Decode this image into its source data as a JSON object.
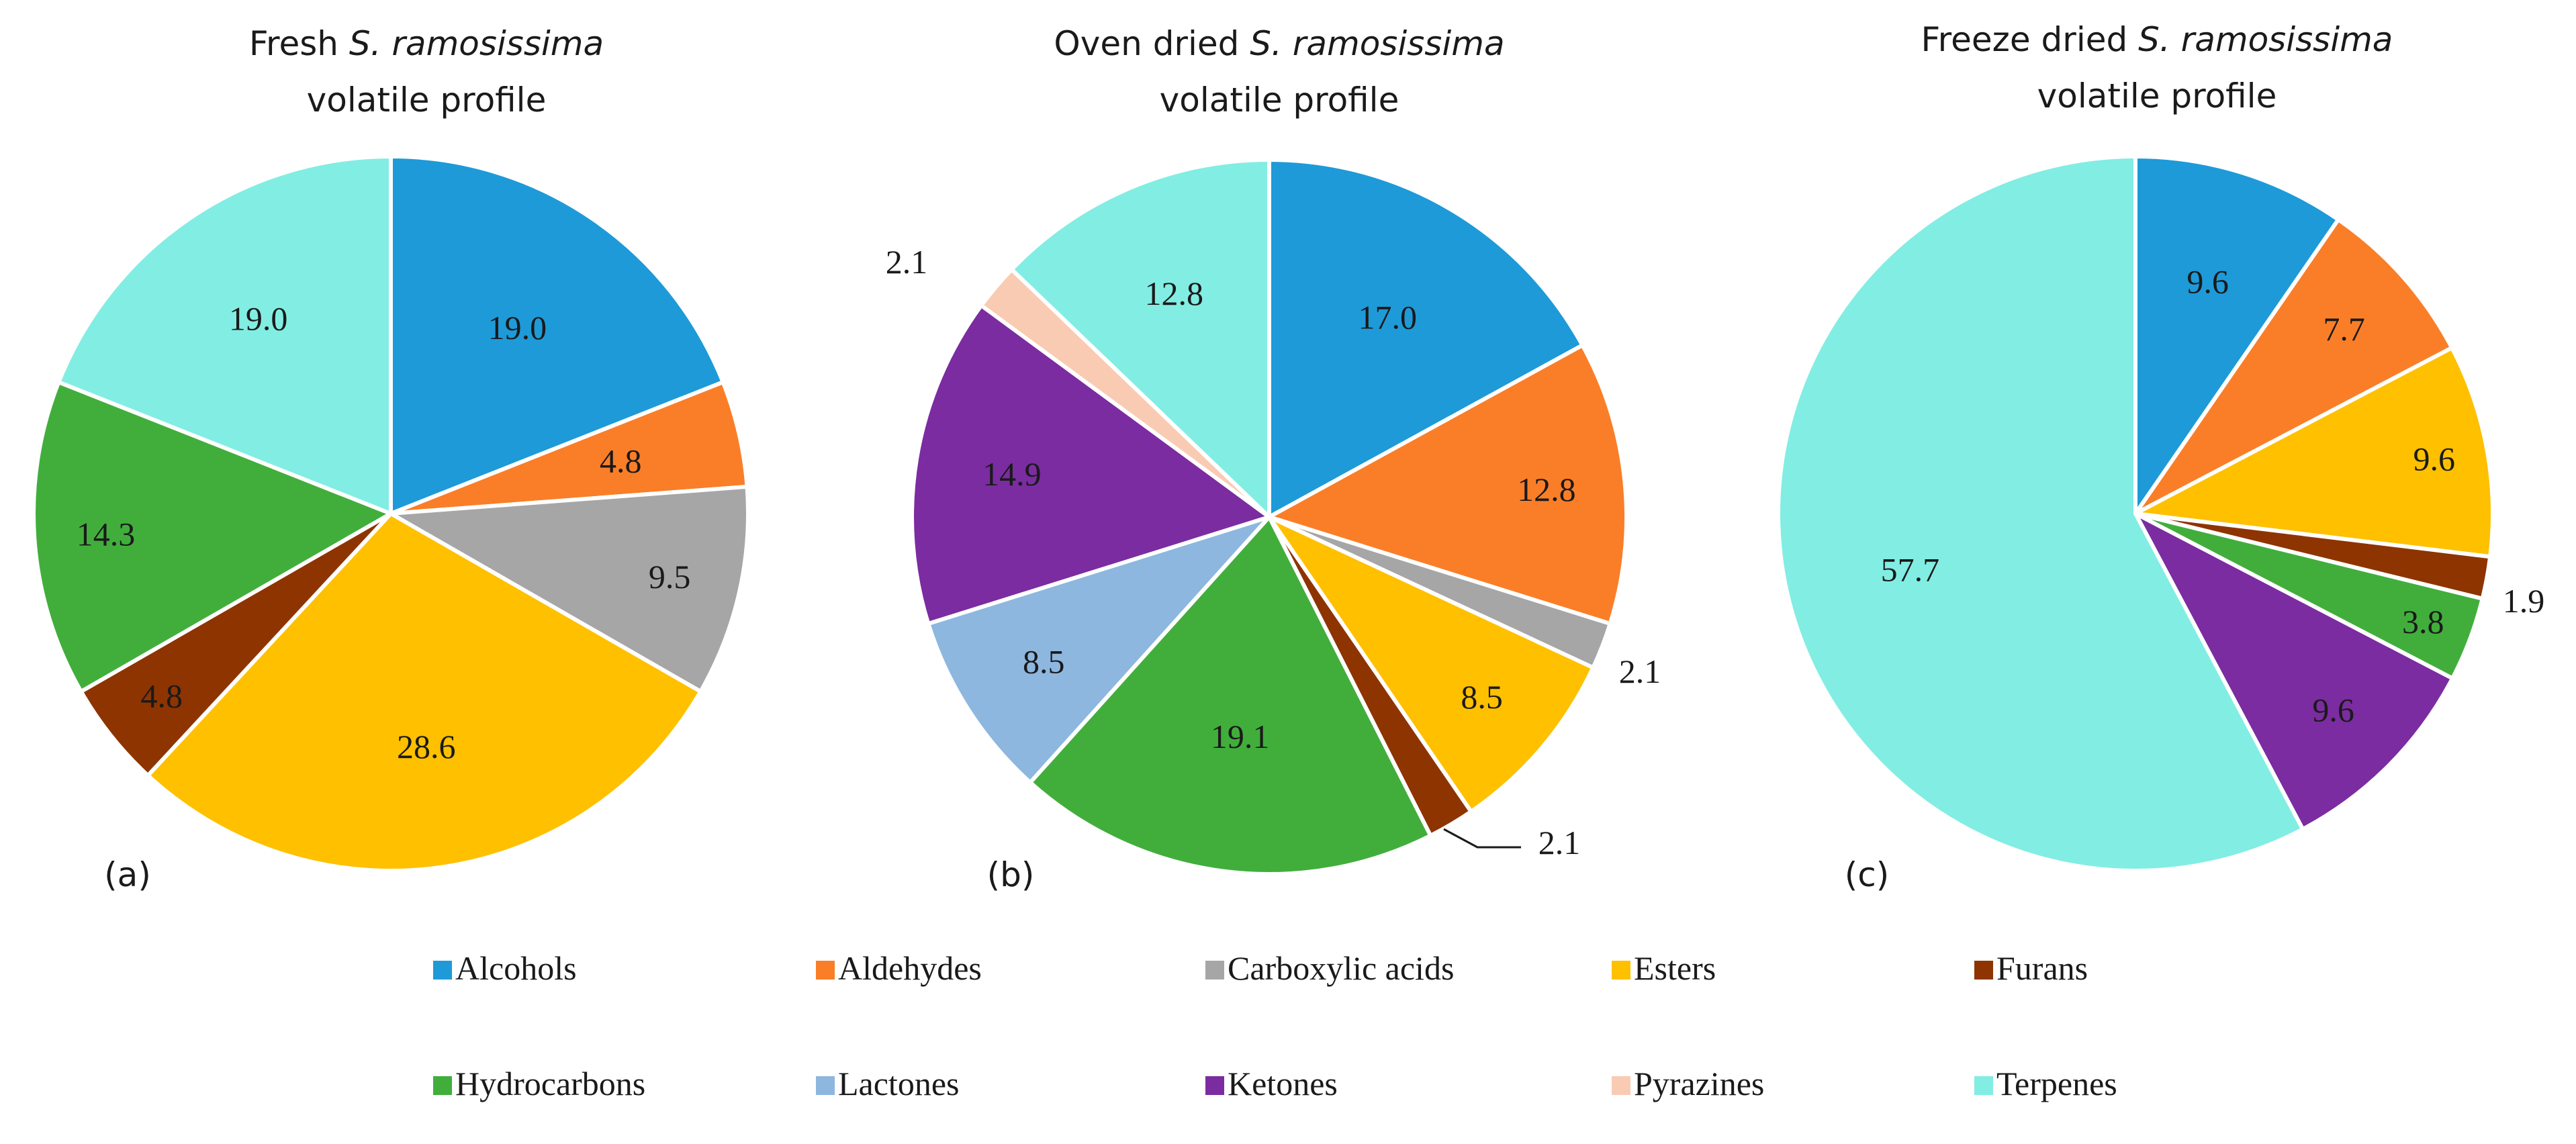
{
  "chart_data": [
    {
      "type": "pie",
      "panel_label": "(a)",
      "title_prefix": "Fresh ",
      "title_species": "S. ramosissima",
      "title_line2": "volatile profile",
      "start": "12 o'clock",
      "direction": "clockwise",
      "slices": [
        {
          "category": "Alcohols",
          "value": 19.0,
          "label": "19.0"
        },
        {
          "category": "Aldehydes",
          "value": 4.8,
          "label": "4.8"
        },
        {
          "category": "Carboxylic acids",
          "value": 9.5,
          "label": "9.5"
        },
        {
          "category": "Esters",
          "value": 28.6,
          "label": "28.6"
        },
        {
          "category": "Furans",
          "value": 4.8,
          "label": "4.8"
        },
        {
          "category": "Hydrocarbons",
          "value": 14.3,
          "label": "14.3"
        },
        {
          "category": "Terpenes",
          "value": 19.0,
          "label": "19.0"
        }
      ]
    },
    {
      "type": "pie",
      "panel_label": "(b)",
      "title_prefix": "Oven dried ",
      "title_species": "S. ramosissima",
      "title_line2": "volatile profile",
      "start": "12 o'clock",
      "direction": "clockwise",
      "slices": [
        {
          "category": "Alcohols",
          "value": 17.0,
          "label": "17.0"
        },
        {
          "category": "Aldehydes",
          "value": 12.8,
          "label": "12.8"
        },
        {
          "category": "Carboxylic acids",
          "value": 2.1,
          "label": "2.1"
        },
        {
          "category": "Esters",
          "value": 8.5,
          "label": "8.5"
        },
        {
          "category": "Furans",
          "value": 2.1,
          "label": "2.1"
        },
        {
          "category": "Hydrocarbons",
          "value": 19.1,
          "label": "19.1"
        },
        {
          "category": "Lactones",
          "value": 8.5,
          "label": "8.5"
        },
        {
          "category": "Ketones",
          "value": 14.9,
          "label": "14.9"
        },
        {
          "category": "Pyrazines",
          "value": 2.1,
          "label": "2.1"
        },
        {
          "category": "Terpenes",
          "value": 12.8,
          "label": "12.8"
        }
      ]
    },
    {
      "type": "pie",
      "panel_label": "(c)",
      "title_prefix": "Freeze dried ",
      "title_species": "S. ramosissima",
      "title_line2": "volatile profile",
      "start": "12 o'clock",
      "direction": "clockwise",
      "slices": [
        {
          "category": "Alcohols",
          "value": 9.6,
          "label": "9.6"
        },
        {
          "category": "Aldehydes",
          "value": 7.7,
          "label": "7.7"
        },
        {
          "category": "Esters",
          "value": 9.6,
          "label": "9.6"
        },
        {
          "category": "Furans",
          "value": 1.9,
          "label": "1.9"
        },
        {
          "category": "Hydrocarbons",
          "value": 3.8,
          "label": "3.8"
        },
        {
          "category": "Ketones",
          "value": 9.6,
          "label": "9.6"
        },
        {
          "category": "Terpenes",
          "value": 57.7,
          "label": "57.7"
        }
      ]
    }
  ],
  "legend": {
    "placement": "bottom",
    "items": [
      {
        "name": "Alcohols",
        "color": "#1E9AD8"
      },
      {
        "name": "Aldehydes",
        "color": "#FA7E28"
      },
      {
        "name": "Carboxylic acids",
        "color": "#A6A6A6"
      },
      {
        "name": "Esters",
        "color": "#FFC000"
      },
      {
        "name": "Furans",
        "color": "#8E3400"
      },
      {
        "name": "Hydrocarbons",
        "color": "#41AE3C"
      },
      {
        "name": "Lactones",
        "color": "#8DB7DF"
      },
      {
        "name": "Ketones",
        "color": "#7B2CA0"
      },
      {
        "name": "Pyrazines",
        "color": "#F9CBB3"
      },
      {
        "name": "Terpenes",
        "color": "#82EDE3"
      }
    ]
  }
}
